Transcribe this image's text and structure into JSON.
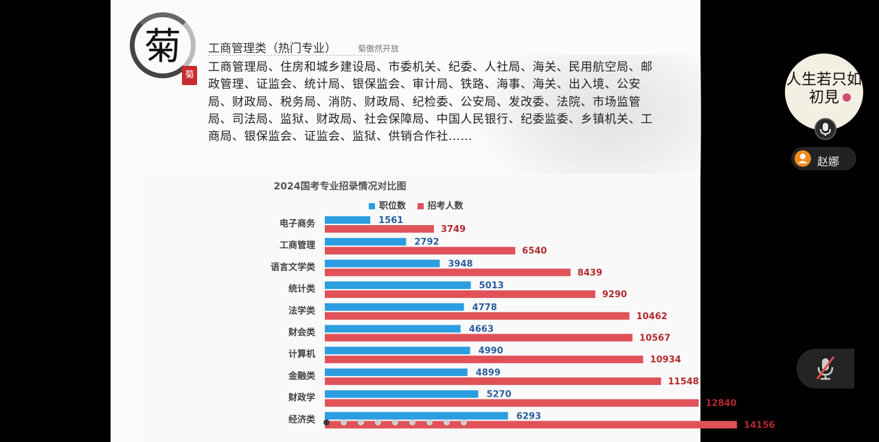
{
  "slide": {
    "logo_char": "菊",
    "seal_char": "菊",
    "poem": "菊傲然开放",
    "title": "工商管理类（热门专业）",
    "body": "工商管理局、住房和城乡建设局、市委机关、纪委、人社局、海关、民用航空局、邮政管理、证监会、统计局、银保监会、审计局、铁路、海事、海关、出入境、公安局、财政局、税务局、消防、财政局、纪检委、公安局、发改委、法院、市场监管局、司法局、监狱、财政局、社会保障局、中国人民银行、纪委监委、乡镇机关、工商局、银保监会、证监会、监狱、供销合作社……"
  },
  "chart_data": {
    "type": "bar",
    "orientation": "horizontal",
    "title": "2024国考专业招录情况对比图",
    "legend_position": "top",
    "categories": [
      "电子商务",
      "工商管理",
      "语言文学类",
      "统计类",
      "法学类",
      "财会类",
      "计算机",
      "金融类",
      "财政学",
      "经济类"
    ],
    "series": [
      {
        "name": "职位数",
        "color": "#2b9de0",
        "label_color": "#2a5f9e",
        "values": [
          1561,
          2792,
          3948,
          5013,
          4778,
          4663,
          4990,
          4899,
          5270,
          6293
        ]
      },
      {
        "name": "招考人数",
        "color": "#e05258",
        "label_color": "#b22a2e",
        "values": [
          3749,
          6540,
          8439,
          9290,
          10462,
          10567,
          10934,
          11548,
          12840,
          14156
        ]
      }
    ]
  },
  "pager": {
    "count": 9,
    "active": 0
  },
  "sidebar": {
    "avatar_text_line1": "人生若只如",
    "avatar_text_line2": "初見",
    "user_name": "赵娜"
  },
  "icons": {
    "mic": "mic-icon",
    "user": "user-icon",
    "mute": "mic-off-icon"
  }
}
